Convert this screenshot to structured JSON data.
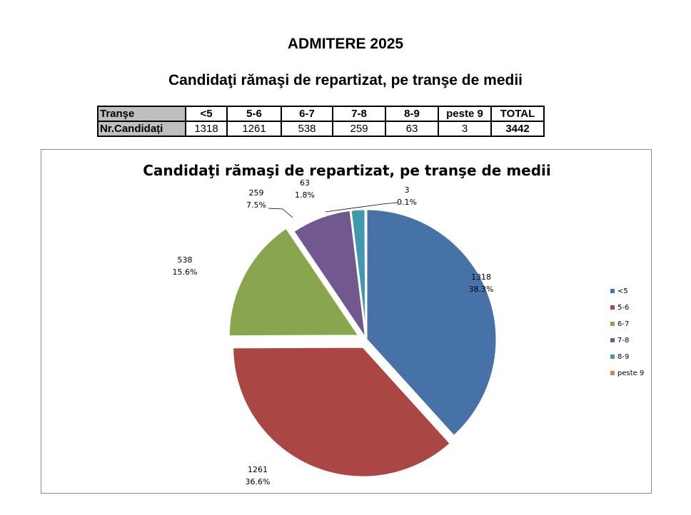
{
  "document": {
    "title": "ADMITERE 2025",
    "subtitle": "Candidaţi rămaşi de repartizat, pe tranşe de medii"
  },
  "table": {
    "header_label": "Tranşe",
    "row_label": "Nr.Candidați",
    "columns": [
      "<5",
      "5-6",
      "6-7",
      "7-8",
      "8-9",
      "peste 9",
      "TOTAL"
    ],
    "values": [
      "1318",
      "1261",
      "538",
      "259",
      "63",
      "3",
      "3442"
    ]
  },
  "chart_data": {
    "type": "pie",
    "title": "Candidaţi rămaşi de repartizat, pe tranşe de medii",
    "categories": [
      "<5",
      "5-6",
      "6-7",
      "7-8",
      "8-9",
      "peste 9"
    ],
    "values": [
      1318,
      1261,
      538,
      259,
      63,
      3
    ],
    "percent_labels": [
      "38.3%",
      "36.6%",
      "15.6%",
      "7.5%",
      "1.8%",
      "0.1%"
    ],
    "colors": [
      "#4672a8",
      "#aa4643",
      "#89a54e",
      "#71588f",
      "#4198af",
      "#db843d"
    ],
    "exploded": [
      false,
      true,
      true,
      false,
      false,
      false
    ],
    "start_angle_deg": 0,
    "direction": "clockwise",
    "legend_position": "right"
  }
}
